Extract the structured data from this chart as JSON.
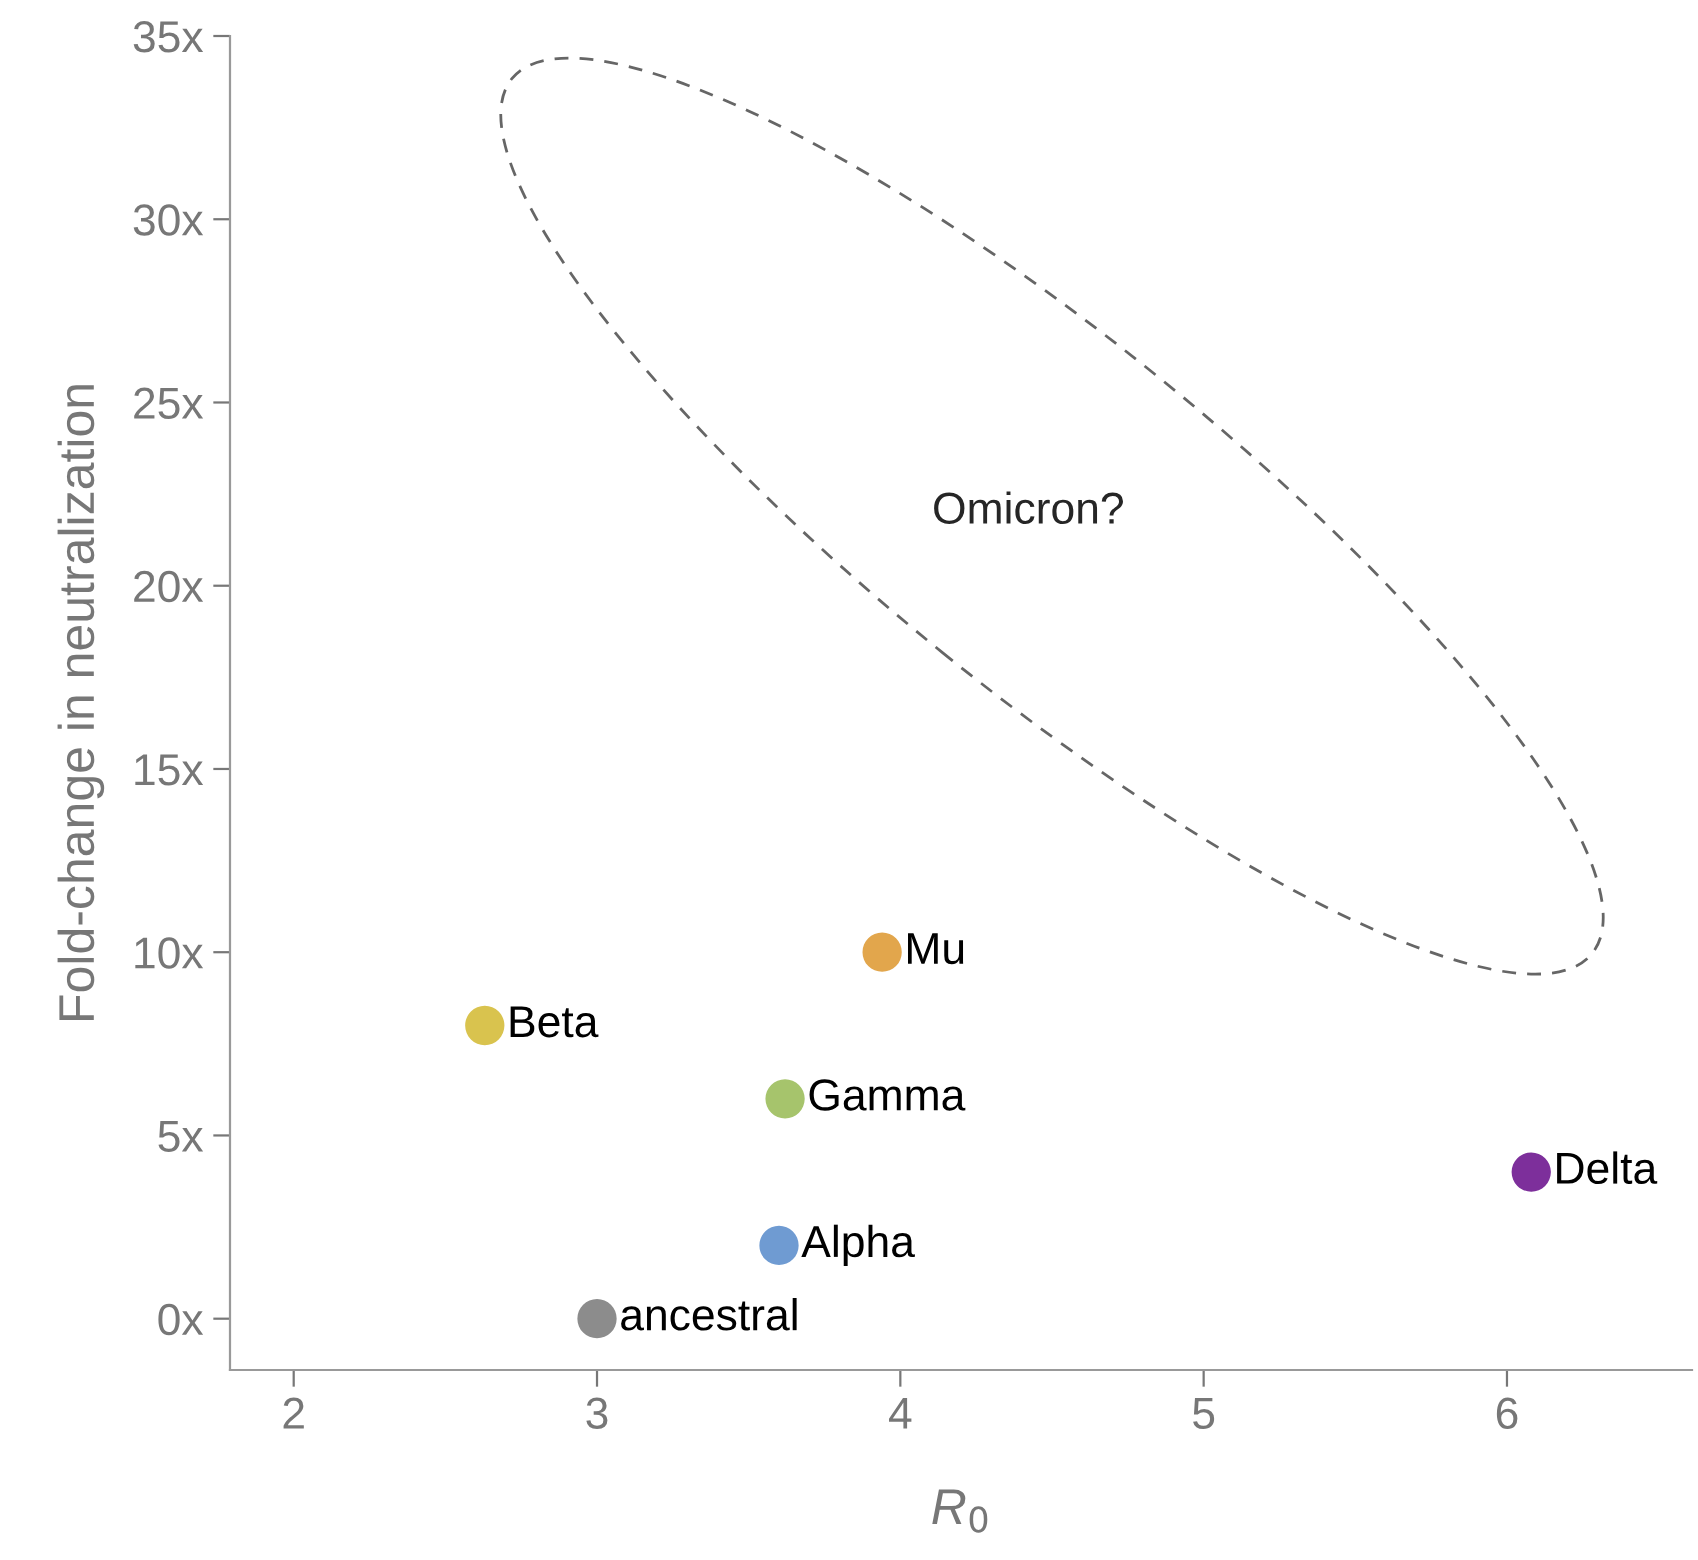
{
  "chart_data": {
    "type": "scatter",
    "xlabel": "R$_{0}$",
    "ylabel": "Fold-change in neutralization",
    "series": [
      {
        "name": "ancestral",
        "color": "#8c8c8c",
        "x": [
          3.0
        ],
        "values": [
          0
        ]
      },
      {
        "name": "Alpha",
        "color": "#6f9bd2",
        "x": [
          3.6
        ],
        "values": [
          2
        ]
      },
      {
        "name": "Gamma",
        "color": "#a6c46c",
        "x": [
          3.62
        ],
        "values": [
          6
        ]
      },
      {
        "name": "Mu",
        "color": "#e2a64c",
        "x": [
          3.94
        ],
        "values": [
          10
        ]
      },
      {
        "name": "Beta",
        "color": "#d9c34e",
        "x": [
          2.63
        ],
        "values": [
          8
        ]
      },
      {
        "name": "Delta",
        "color": "#7d2f9b",
        "x": [
          6.08
        ],
        "values": [
          4
        ]
      }
    ],
    "xlim": [
      1.79,
      6.61
    ],
    "xticks": [
      2,
      3,
      4,
      5,
      6
    ],
    "ylim": [
      -1.4,
      35
    ],
    "yticks": [
      {
        "value": 0,
        "label": "0x"
      },
      {
        "value": 5,
        "label": "5x"
      },
      {
        "value": 10,
        "label": "10x"
      },
      {
        "value": 15,
        "label": "15x"
      },
      {
        "value": 20,
        "label": "20x"
      },
      {
        "value": 25,
        "label": "25x"
      },
      {
        "value": 30,
        "label": "30x"
      },
      {
        "value": 35,
        "label": "35x"
      }
    ],
    "annotations": [
      "Omicron?"
    ],
    "marker": "circle",
    "grid": false,
    "legend": false
  }
}
